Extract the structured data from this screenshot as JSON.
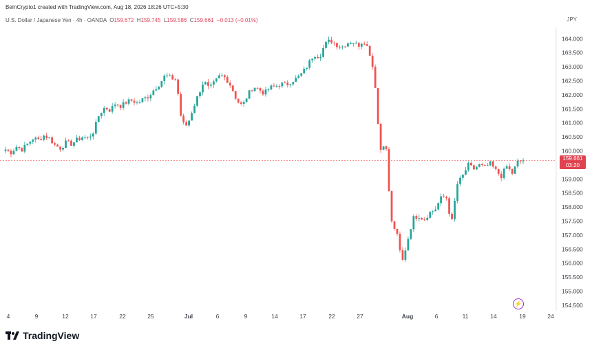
{
  "header": {
    "credit": "BeInCrypto1 created with TradingView.com, Aug 18, 2026 18:26 UTC+5:30"
  },
  "legend": {
    "symbol": "U.S. Dollar / Japanese Yen · 4h · OANDA",
    "o_label": "O",
    "o": "159.672",
    "h_label": "H",
    "h": "159.745",
    "l_label": "L",
    "l": "159.586",
    "c_label": "C",
    "c": "159.661",
    "change": "−0.013 (−0.01%)"
  },
  "currency": "JPY",
  "price_badge": {
    "price": "159.661",
    "countdown": "03:20"
  },
  "brand": {
    "name": "TradingView"
  },
  "colors": {
    "up": "#26a69a",
    "down": "#ef5350",
    "badge": "#e1424f"
  },
  "icons": {
    "lightning": "lightning-icon",
    "logo": "tradingview-logo-icon"
  },
  "chart_data": {
    "type": "candlestick",
    "yticks": [
      "154.500",
      "155.000",
      "155.500",
      "156.000",
      "156.500",
      "157.000",
      "157.500",
      "158.000",
      "158.500",
      "159.000",
      "159.500",
      "160.000",
      "160.500",
      "161.000",
      "161.500",
      "162.000",
      "162.500",
      "163.000",
      "163.500",
      "164.000"
    ],
    "ylim": [
      154.3,
      164.4
    ],
    "xticks": [
      {
        "label": "4",
        "bold": false
      },
      {
        "label": "9",
        "bold": false
      },
      {
        "label": "12",
        "bold": false
      },
      {
        "label": "17",
        "bold": false
      },
      {
        "label": "22",
        "bold": false
      },
      {
        "label": "25",
        "bold": false
      },
      {
        "label": "Jul",
        "bold": true
      },
      {
        "label": "6",
        "bold": false
      },
      {
        "label": "9",
        "bold": false
      },
      {
        "label": "14",
        "bold": false
      },
      {
        "label": "17",
        "bold": false
      },
      {
        "label": "22",
        "bold": false
      },
      {
        "label": "27",
        "bold": false
      },
      {
        "label": "Aug",
        "bold": true
      },
      {
        "label": "6",
        "bold": false
      },
      {
        "label": "11",
        "bold": false
      },
      {
        "label": "14",
        "bold": false
      },
      {
        "label": "19",
        "bold": false
      },
      {
        "label": "24",
        "bold": false
      }
    ],
    "path_closes": [
      160.05,
      159.95,
      160.15,
      160.05,
      160.25,
      160.45,
      160.4,
      160.55,
      160.45,
      160.2,
      160.1,
      160.3,
      160.25,
      160.4,
      160.5,
      160.45,
      160.7,
      161.3,
      161.55,
      161.45,
      161.7,
      161.6,
      161.75,
      161.8,
      161.7,
      161.85,
      161.95,
      162.2,
      162.4,
      162.7,
      162.6,
      162.55,
      161.0,
      160.9,
      161.5,
      162.0,
      162.5,
      162.2,
      162.45,
      162.7,
      162.6,
      162.3,
      161.8,
      161.6,
      162.0,
      162.3,
      162.2,
      162.05,
      162.25,
      162.3,
      162.4,
      162.35,
      162.5,
      162.6,
      162.8,
      163.1,
      163.45,
      163.35,
      163.8,
      163.95,
      163.8,
      163.7,
      163.85,
      163.9,
      163.75,
      163.95,
      163.6,
      162.7,
      160.0,
      160.4,
      157.5,
      157.1,
      156.0,
      156.8,
      157.6,
      157.7,
      157.55,
      157.8,
      157.9,
      158.3,
      158.4,
      157.4,
      158.8,
      159.1,
      159.5,
      159.35,
      159.5,
      159.4,
      159.55,
      159.3,
      159.1,
      159.45,
      159.2,
      159.6,
      159.66
    ],
    "last_price": 159.661
  }
}
